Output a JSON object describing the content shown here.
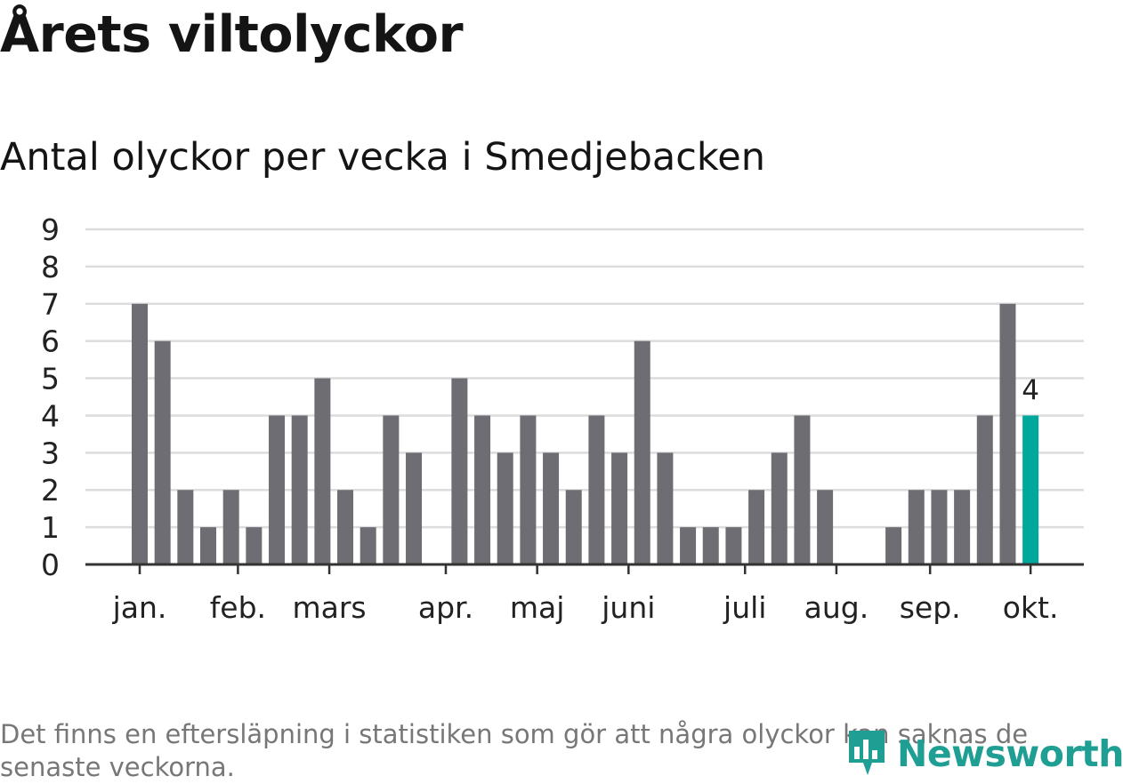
{
  "title": "Årets viltolyckor",
  "subtitle": "Antal olyckor per vecka i Smedjebacken",
  "footnote": "Det finns en eftersläpning i statistiken som gör att några olyckor kan saknas de senaste veckorna.",
  "logo": {
    "text": "Newsworthy",
    "icon": "bar-chart-logo-icon"
  },
  "colors": {
    "bar": "#6e6d73",
    "highlight": "#00a89b",
    "grid": "#dcdcdc",
    "axis": "#333333"
  },
  "chart_data": {
    "type": "bar",
    "xlabel": "",
    "ylabel": "",
    "ylim": [
      0,
      9
    ],
    "yticks": [
      "0",
      "1",
      "2",
      "3",
      "4",
      "5",
      "6",
      "7",
      "8",
      "9"
    ],
    "weeks": [
      1,
      2,
      3,
      4,
      5,
      6,
      7,
      8,
      9,
      10,
      11,
      12,
      13,
      14,
      15,
      16,
      17,
      18,
      19,
      20,
      21,
      22,
      23,
      24,
      25,
      26,
      27,
      28,
      29,
      30,
      31,
      32,
      33,
      34,
      35,
      36,
      37,
      38,
      39,
      40
    ],
    "values": [
      7,
      6,
      2,
      1,
      2,
      1,
      4,
      4,
      5,
      2,
      1,
      4,
      3,
      0,
      5,
      4,
      3,
      4,
      3,
      2,
      4,
      3,
      6,
      3,
      1,
      1,
      1,
      2,
      3,
      4,
      2,
      0,
      0,
      1,
      2,
      2,
      2,
      4,
      7,
      4
    ],
    "highlight_index": 39,
    "highlight_label": "4",
    "months": [
      {
        "label": "jan.",
        "week": 1
      },
      {
        "label": "feb.",
        "week": 5.3
      },
      {
        "label": "mars",
        "week": 9.3
      },
      {
        "label": "apr.",
        "week": 14.4
      },
      {
        "label": "maj",
        "week": 18.4
      },
      {
        "label": "juni",
        "week": 22.4
      },
      {
        "label": "juli",
        "week": 27.5
      },
      {
        "label": "aug.",
        "week": 31.5
      },
      {
        "label": "sep.",
        "week": 35.6
      },
      {
        "label": "okt.",
        "week": 40
      }
    ]
  }
}
